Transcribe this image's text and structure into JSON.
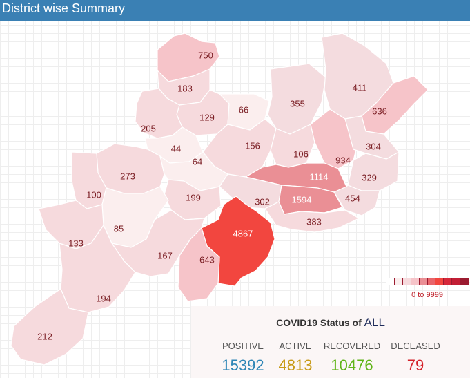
{
  "header": {
    "title": "District wise Summary"
  },
  "districts": [
    {
      "name": "d-north-1",
      "value": "750",
      "fill": "#f6c4c9"
    },
    {
      "name": "d-north-2",
      "value": "183",
      "fill": "#f6dadd"
    },
    {
      "name": "d-north-3",
      "value": "129",
      "fill": "#f6dadd"
    },
    {
      "name": "d-north-4",
      "value": "66",
      "fill": "#fbeeee"
    },
    {
      "name": "d-north-5",
      "value": "355",
      "fill": "#f4dcdf"
    },
    {
      "name": "d-north-6",
      "value": "411",
      "fill": "#f4dcdf"
    },
    {
      "name": "d-north-7",
      "value": "636",
      "fill": "#f6c4c9"
    },
    {
      "name": "d-west-1",
      "value": "205",
      "fill": "#f6dadd"
    },
    {
      "name": "d-center-1",
      "value": "44",
      "fill": "#fbeeee"
    },
    {
      "name": "d-center-2",
      "value": "156",
      "fill": "#f6dadd"
    },
    {
      "name": "d-center-3",
      "value": "106",
      "fill": "#f6dadd"
    },
    {
      "name": "d-east-1",
      "value": "934",
      "fill": "#f6c4c9"
    },
    {
      "name": "d-east-2",
      "value": "304",
      "fill": "#f4dcdf"
    },
    {
      "name": "d-west-2",
      "value": "273",
      "fill": "#f6dadd"
    },
    {
      "name": "d-center-4",
      "value": "64",
      "fill": "#fbeeee"
    },
    {
      "name": "d-center-5",
      "value": "1114",
      "fill": "#ea8f95"
    },
    {
      "name": "d-east-3",
      "value": "329",
      "fill": "#f4dcdf"
    },
    {
      "name": "d-west-3",
      "value": "100",
      "fill": "#f6dadd"
    },
    {
      "name": "d-center-6",
      "value": "199",
      "fill": "#f6dadd"
    },
    {
      "name": "d-center-7",
      "value": "302",
      "fill": "#f4dcdf"
    },
    {
      "name": "d-center-8",
      "value": "1594",
      "fill": "#ea8f95"
    },
    {
      "name": "d-east-4",
      "value": "454",
      "fill": "#f4dcdf"
    },
    {
      "name": "d-west-4",
      "value": "85",
      "fill": "#fbeeee"
    },
    {
      "name": "d-south-1",
      "value": "383",
      "fill": "#f6dadd"
    },
    {
      "name": "d-south-2",
      "value": "4867",
      "fill": "#f2463f"
    },
    {
      "name": "d-west-5",
      "value": "133",
      "fill": "#f6dadd"
    },
    {
      "name": "d-south-3",
      "value": "167",
      "fill": "#f6dadd"
    },
    {
      "name": "d-south-4",
      "value": "643",
      "fill": "#f6c4c9"
    },
    {
      "name": "d-south-5",
      "value": "194",
      "fill": "#f6dadd"
    },
    {
      "name": "d-south-6",
      "value": "212",
      "fill": "#f6dadd"
    }
  ],
  "legend": {
    "range_label": "0 to 9999",
    "swatches": [
      "#ffffff",
      "#fbeeee",
      "#f6dadd",
      "#f6c4c9",
      "#ea8f95",
      "#e8646a",
      "#f2463f",
      "#d6283a",
      "#c21e35",
      "#9b1b30"
    ]
  },
  "status": {
    "title": "COVID19 Status of",
    "region": "ALL",
    "positive": {
      "label": "POSITIVE",
      "value": "15392",
      "color": "#2f86b6"
    },
    "active": {
      "label": "ACTIVE",
      "value": "4813",
      "color": "#c79a16"
    },
    "recovered": {
      "label": "RECOVERED",
      "value": "10476",
      "color": "#5fb417"
    },
    "deceased": {
      "label": "DECEASED",
      "value": "79",
      "color": "#d4222a"
    }
  }
}
